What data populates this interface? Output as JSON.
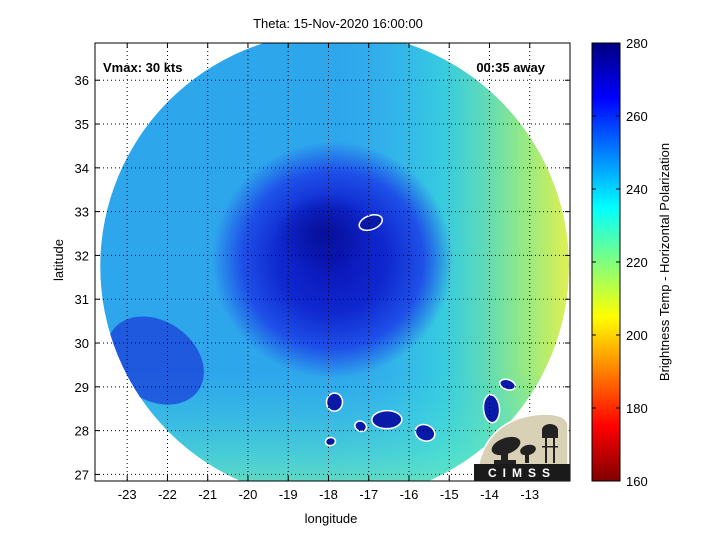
{
  "chart_data": {
    "type": "heatmap",
    "title": "Theta: 15-Nov-2020 16:00:00",
    "xlabel": "longitude",
    "ylabel": "latitude",
    "xlim": [
      -23.8,
      -12.0
    ],
    "ylim": [
      26.85,
      36.85
    ],
    "x_ticks": [
      -23,
      -22,
      -21,
      -20,
      -19,
      -18,
      -17,
      -16,
      -15,
      -14,
      -13
    ],
    "y_ticks": [
      27,
      28,
      29,
      30,
      31,
      32,
      33,
      34,
      35,
      36
    ],
    "grid": true,
    "annotations": {
      "vmax": "Vmax: 30 kts",
      "time_away": "00:35 away"
    },
    "colorbar": {
      "label": "Brightness Temp - Horizontal Polarization",
      "range": [
        160,
        280
      ],
      "ticks": [
        160,
        180,
        200,
        220,
        240,
        260,
        280
      ],
      "colormap": "jet"
    },
    "swath": {
      "center_lon": -17.85,
      "center_lat": 31.75,
      "radius_deg": 5.35
    },
    "storm_center": {
      "lon": -17.9,
      "lat": 31.9,
      "min_temp": 262
    },
    "land_masses": [
      {
        "name": "island-1",
        "lon": -16.95,
        "lat": 32.75
      },
      {
        "name": "island-2",
        "lon": -17.85,
        "lat": 28.65
      },
      {
        "name": "island-3",
        "lon": -17.2,
        "lat": 28.1
      },
      {
        "name": "island-4",
        "lon": -16.55,
        "lat": 28.25
      },
      {
        "name": "island-5",
        "lon": -15.6,
        "lat": 27.95
      },
      {
        "name": "island-6",
        "lon": -13.95,
        "lat": 28.5
      },
      {
        "name": "island-7",
        "lon": -13.55,
        "lat": 29.05
      },
      {
        "name": "island-8",
        "lon": -17.95,
        "lat": 27.75
      }
    ],
    "logo": {
      "text": "CIMSS"
    }
  }
}
